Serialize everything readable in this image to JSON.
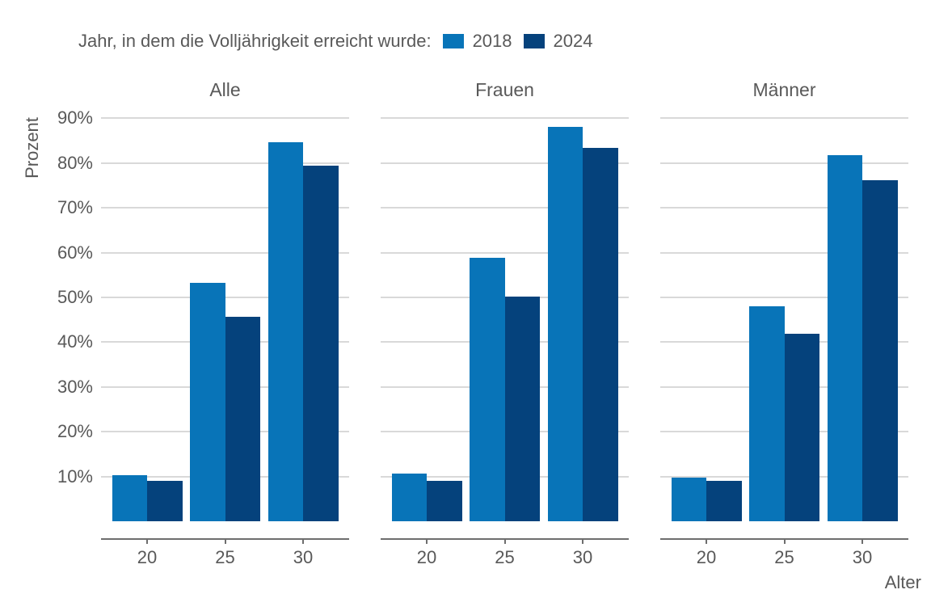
{
  "legend": {
    "title": "Jahr, in dem die Volljährigkeit erreicht wurde:",
    "series": [
      {
        "label": "2018",
        "color": "#0874b8"
      },
      {
        "label": "2024",
        "color": "#05427c"
      }
    ]
  },
  "chart_data": {
    "type": "bar",
    "title": "",
    "xlabel": "Alter",
    "ylabel": "Prozent",
    "categories": [
      "20",
      "25",
      "30"
    ],
    "y_ticks": [
      10,
      20,
      30,
      40,
      50,
      60,
      70,
      80,
      90
    ],
    "y_tick_suffix": "%",
    "ylim": [
      0,
      92
    ],
    "grid": "horizontal-only",
    "legend_position": "top",
    "facets": [
      {
        "title": "Alle",
        "series": [
          {
            "name": "2018",
            "color": "#0874b8",
            "values": [
              10.2,
              53.3,
              84.6
            ]
          },
          {
            "name": "2024",
            "color": "#05427c",
            "values": [
              9.1,
              45.6,
              79.4
            ]
          }
        ]
      },
      {
        "title": "Frauen",
        "series": [
          {
            "name": "2018",
            "color": "#0874b8",
            "values": [
              10.7,
              58.8,
              88.1
            ]
          },
          {
            "name": "2024",
            "color": "#05427c",
            "values": [
              9.1,
              50.1,
              83.4
            ]
          }
        ]
      },
      {
        "title": "Männer",
        "series": [
          {
            "name": "2018",
            "color": "#0874b8",
            "values": [
              9.8,
              48.1,
              81.7
            ]
          },
          {
            "name": "2024",
            "color": "#05427c",
            "values": [
              9.0,
              41.8,
              76.2
            ]
          }
        ]
      }
    ],
    "colors": {
      "text": "#595959",
      "grid": "#d9d9d9",
      "axis": "#6e6e6e"
    }
  }
}
